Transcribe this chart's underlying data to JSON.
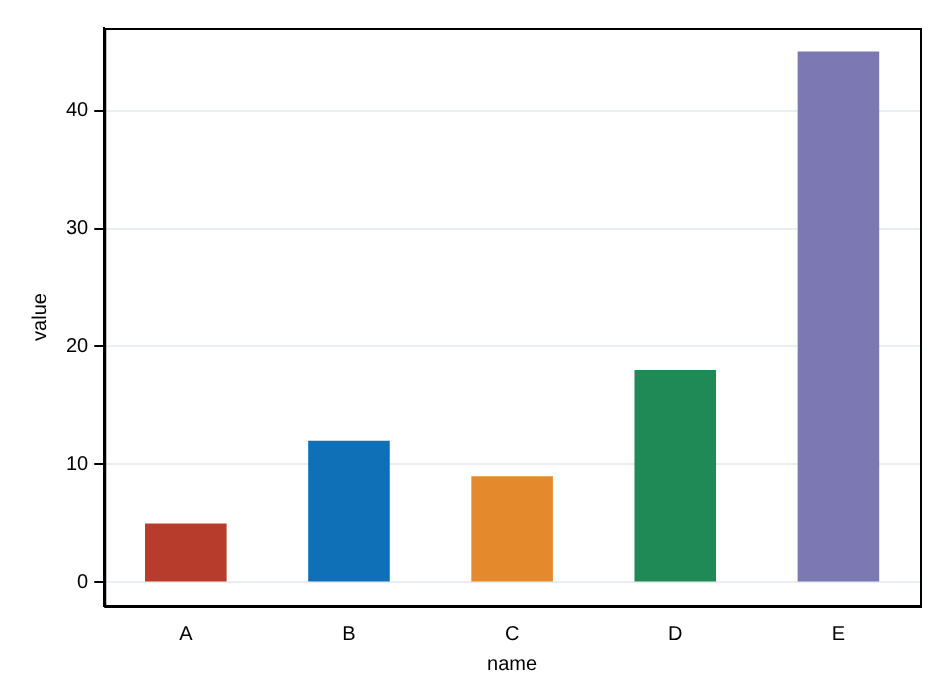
{
  "chart_data": {
    "type": "bar",
    "xlabel": "name",
    "ylabel": "value",
    "categories": [
      "A",
      "B",
      "C",
      "D",
      "E"
    ],
    "values": [
      5,
      12,
      9,
      18,
      45
    ],
    "colors": [
      "#b83c2b",
      "#0f70b7",
      "#e48a2c",
      "#1f8a56",
      "#7b78b4"
    ],
    "ylim": [
      -2,
      47
    ],
    "yticks": [
      0,
      10,
      20,
      30,
      40
    ],
    "grid": "y",
    "legend": false
  }
}
